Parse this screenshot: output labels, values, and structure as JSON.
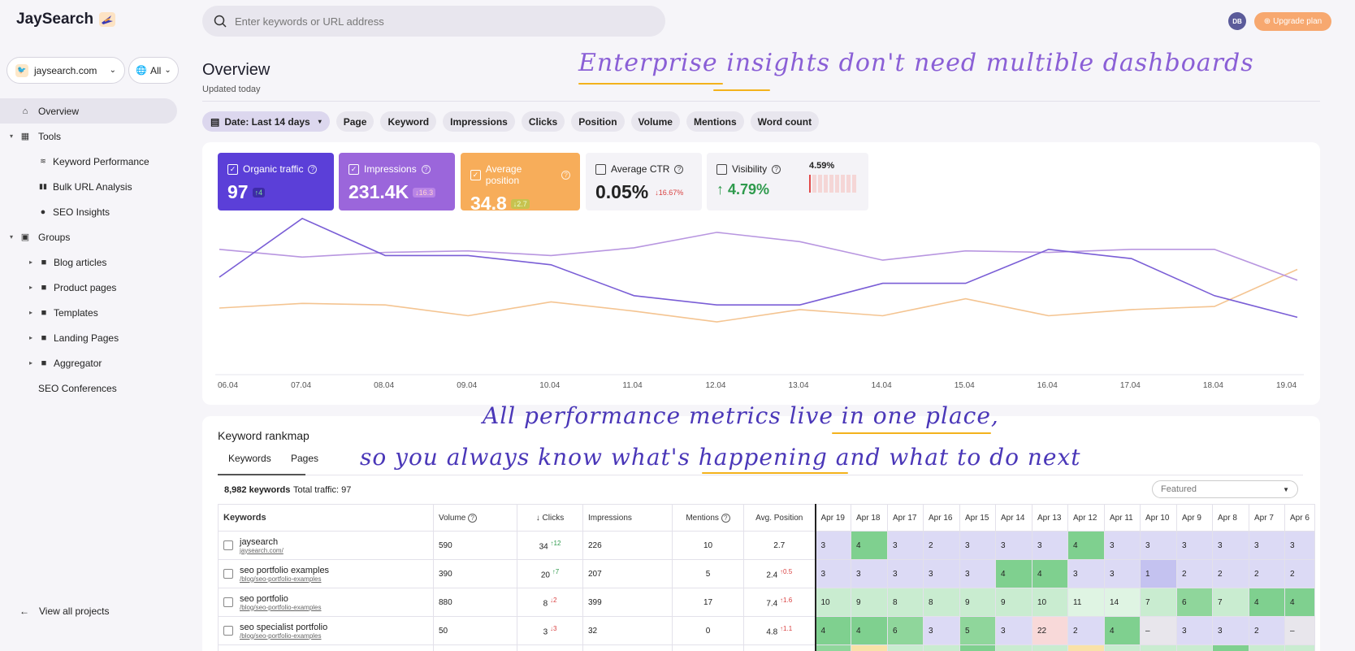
{
  "app": {
    "name": "JaySearch"
  },
  "search": {
    "placeholder": "Enter keywords or URL address"
  },
  "user": {
    "initials": "DB",
    "upgrade_label": "Upgrade plan"
  },
  "project": {
    "domain": "jaysearch.com",
    "scope": "All"
  },
  "sidebar": {
    "items": [
      {
        "label": "Overview",
        "icon": "home-icon"
      },
      {
        "label": "Tools",
        "icon": "grid-icon"
      },
      {
        "label": "Keyword Performance",
        "icon": "signal-icon"
      },
      {
        "label": "Bulk URL Analysis",
        "icon": "bars-icon"
      },
      {
        "label": "SEO Insights",
        "icon": "info-icon"
      },
      {
        "label": "Groups",
        "icon": "chart-icon"
      },
      {
        "label": "Blog articles",
        "icon": "folder-icon"
      },
      {
        "label": "Product pages",
        "icon": "folder-icon"
      },
      {
        "label": "Templates",
        "icon": "folder-icon"
      },
      {
        "label": "Landing Pages",
        "icon": "folder-icon"
      },
      {
        "label": "Aggregator",
        "icon": "folder-icon"
      },
      {
        "label": "SEO Conferences",
        "icon": ""
      }
    ],
    "view_all": "View all projects"
  },
  "header": {
    "title": "Overview",
    "updated": "Updated today"
  },
  "annotations": {
    "line1": "Enterprise insights don't need multible dashboards",
    "line2": "All performance metrics live in one place,",
    "line3": "so you always know what's happening and what to do next"
  },
  "filters": [
    "Date: Last 14 days",
    "Page",
    "Keyword",
    "Impressions",
    "Clicks",
    "Position",
    "Volume",
    "Mentions",
    "Word count"
  ],
  "metrics": {
    "organic": {
      "label": "Organic traffic",
      "value": "97",
      "delta": "4",
      "color": "#5b3fd8"
    },
    "impressions": {
      "label": "Impressions",
      "value": "231.4K",
      "delta": "16.3",
      "color": "#9b66db"
    },
    "position": {
      "label": "Average position",
      "value": "34.8",
      "delta": "2.7",
      "color": "#f7ad5a"
    },
    "ctr": {
      "label": "Average CTR",
      "value": "0.05%",
      "delta": "16.67%"
    },
    "visibility": {
      "label": "Visibility",
      "value": "4.79%",
      "spark_value": "4.59%"
    }
  },
  "chart_data": {
    "type": "line",
    "x": [
      "06.04",
      "07.04",
      "08.04",
      "09.04",
      "10.04",
      "11.04",
      "12.04",
      "13.04",
      "14.04",
      "15.04",
      "16.04",
      "17.04",
      "18.04",
      "19.04"
    ],
    "series": [
      {
        "name": "Organic traffic",
        "color": "#7a5ed6",
        "values": [
          60,
          98,
          74,
          74,
          68,
          48,
          42,
          42,
          56,
          56,
          78,
          72,
          48,
          34
        ]
      },
      {
        "name": "Impressions",
        "color": "#b896e0",
        "values": [
          78,
          73,
          76,
          77,
          74,
          79,
          89,
          83,
          71,
          77,
          76,
          78,
          78,
          58
        ]
      },
      {
        "name": "Average position",
        "color": "#f4c491",
        "values": [
          40,
          43,
          42,
          35,
          44,
          38,
          31,
          39,
          35,
          46,
          35,
          39,
          41,
          65
        ]
      }
    ],
    "ylim": [
      0,
      100
    ]
  },
  "rankmap": {
    "title": "Keyword rankmap",
    "tabs": [
      "Keywords",
      "Pages"
    ],
    "keyword_count": "8,982 keywords",
    "total_traffic": "Total traffic: 97",
    "sort": "Featured",
    "columns": [
      "Keywords",
      "Volume",
      "Clicks",
      "Impressions",
      "Mentions",
      "Avg. Position"
    ],
    "dates": [
      "Apr 19",
      "Apr 18",
      "Apr 17",
      "Apr 16",
      "Apr 15",
      "Apr 14",
      "Apr 13",
      "Apr 12",
      "Apr 11",
      "Apr 10",
      "Apr 9",
      "Apr 8",
      "Apr 7",
      "Apr 6"
    ],
    "rows": [
      {
        "keyword": "jaysearch",
        "url": "jaysearch.com/",
        "volume": "590",
        "clicks": "34",
        "clicks_delta": "12",
        "clicks_dir": "up",
        "impressions": "226",
        "mentions": "10",
        "position": "2.7",
        "pos_delta": "",
        "pos_dir": "",
        "ranks": [
          "3",
          "4",
          "3",
          "2",
          "3",
          "3",
          "3",
          "4",
          "3",
          "3",
          "3",
          "3",
          "3",
          "3"
        ]
      },
      {
        "keyword": "seo portfolio examples",
        "url": "/blog/seo-portfolio-examples",
        "volume": "390",
        "clicks": "20",
        "clicks_delta": "7",
        "clicks_dir": "up",
        "impressions": "207",
        "mentions": "5",
        "position": "2.4",
        "pos_delta": "0.5",
        "pos_dir": "down",
        "ranks": [
          "3",
          "3",
          "3",
          "3",
          "3",
          "4",
          "4",
          "3",
          "3",
          "1",
          "2",
          "2",
          "2",
          "2"
        ]
      },
      {
        "keyword": "seo portfolio",
        "url": "/blog/seo-portfolio-examples",
        "volume": "880",
        "clicks": "8",
        "clicks_delta": "2",
        "clicks_dir": "down",
        "impressions": "399",
        "mentions": "17",
        "position": "7.4",
        "pos_delta": "1.6",
        "pos_dir": "down",
        "ranks": [
          "10",
          "9",
          "8",
          "8",
          "9",
          "9",
          "10",
          "11",
          "14",
          "7",
          "6",
          "7",
          "4",
          "4"
        ]
      },
      {
        "keyword": "seo specialist portfolio",
        "url": "/blog/seo-portfolio-examples",
        "volume": "50",
        "clicks": "3",
        "clicks_delta": "3",
        "clicks_dir": "down",
        "impressions": "32",
        "mentions": "0",
        "position": "4.8",
        "pos_delta": "1.1",
        "pos_dir": "down",
        "ranks": [
          "4",
          "4",
          "6",
          "3",
          "5",
          "3",
          "22",
          "2",
          "4",
          "–",
          "3",
          "3",
          "2",
          "–"
        ]
      }
    ]
  }
}
